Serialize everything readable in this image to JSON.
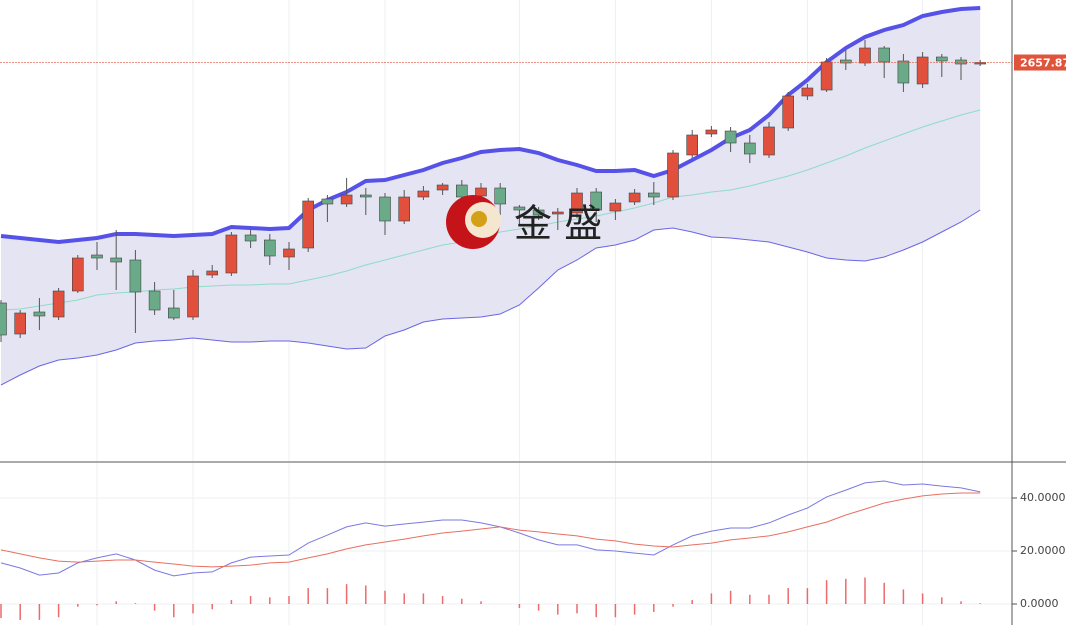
{
  "chart_data": [
    {
      "type": "candlestick",
      "watermark": "金 盛",
      "categories": [
        null,
        null,
        null,
        null,
        null,
        null,
        null,
        null,
        null,
        null,
        null,
        null,
        null,
        null,
        null,
        null,
        null,
        null,
        null,
        null,
        null,
        null,
        null,
        null,
        null,
        null,
        null,
        null,
        null,
        null,
        null,
        null,
        null,
        null,
        null,
        null,
        null,
        null,
        null,
        null,
        null,
        null,
        null,
        null,
        null,
        null,
        null,
        null,
        null,
        null,
        null,
        null
      ],
      "open": [
        2597.75,
        2590.0,
        2595.5,
        2594.25,
        2600.75,
        2609.75,
        2609.0,
        2608.5,
        2600.75,
        2596.5,
        2594.25,
        2604.75,
        2605.25,
        2614.75,
        2613.5,
        2609.25,
        2611.5,
        2623.75,
        2622.5,
        2624.75,
        2624.25,
        2618.25,
        2624.25,
        2626.0,
        2627.25,
        2624.5,
        2626.5,
        2621.75,
        2621.0,
        2620.0,
        2620.25,
        2625.5,
        2620.75,
        2623.0,
        2625.25,
        2624.25,
        2634.75,
        2640.0,
        2640.75,
        2637.75,
        2634.75,
        2641.5,
        2649.5,
        2651.0,
        2658.5,
        2657.75,
        2661.5,
        2658.25,
        2652.5,
        2659.25,
        2658.5,
        2657.75
      ],
      "high": [
        2598.5,
        2596.0,
        2599.0,
        2601.5,
        2609.75,
        2613.0,
        2616.0,
        2611.0,
        2603.0,
        2601.0,
        2606.0,
        2607.25,
        2615.5,
        2616.0,
        2615.0,
        2613.0,
        2624.0,
        2624.75,
        2629.0,
        2626.5,
        2625.25,
        2626.0,
        2627.0,
        2627.75,
        2628.5,
        2627.75,
        2627.75,
        2622.25,
        2621.75,
        2621.5,
        2626.5,
        2626.5,
        2623.75,
        2626.25,
        2628.0,
        2636.0,
        2641.0,
        2642.0,
        2641.75,
        2639.75,
        2643.0,
        2650.5,
        2652.5,
        2659.0,
        2661.0,
        2663.5,
        2662.0,
        2660.0,
        2660.5,
        2660.0,
        2659.25,
        2658.5
      ],
      "low": [
        2588.0,
        2589.0,
        2591.0,
        2593.5,
        2600.25,
        2606.0,
        2601.0,
        2590.25,
        2594.75,
        2593.5,
        2593.5,
        2604.0,
        2604.5,
        2611.5,
        2607.25,
        2606.0,
        2610.5,
        2618.0,
        2621.75,
        2619.75,
        2614.75,
        2617.5,
        2623.5,
        2624.75,
        2618.5,
        2621.0,
        2619.75,
        2617.25,
        2618.5,
        2616.0,
        2619.0,
        2618.0,
        2618.5,
        2622.25,
        2622.25,
        2623.5,
        2634.0,
        2639.25,
        2635.5,
        2632.75,
        2634.0,
        2640.75,
        2648.5,
        2650.5,
        2656.0,
        2657.0,
        2654.0,
        2650.5,
        2651.5,
        2654.25,
        2653.5,
        2657.0
      ],
      "close": [
        2589.75,
        2595.25,
        2594.5,
        2600.75,
        2609.0,
        2609.0,
        2608.0,
        2600.5,
        2596.0,
        2594.0,
        2604.5,
        2605.75,
        2614.75,
        2613.25,
        2609.5,
        2611.25,
        2623.25,
        2622.5,
        2624.75,
        2624.25,
        2618.25,
        2624.25,
        2625.75,
        2627.25,
        2624.25,
        2626.5,
        2622.5,
        2621.0,
        2619.75,
        2620.5,
        2625.25,
        2621.0,
        2622.75,
        2625.25,
        2624.25,
        2635.25,
        2639.75,
        2641.0,
        2637.75,
        2635.0,
        2641.75,
        2649.5,
        2651.5,
        2658.0,
        2657.75,
        2661.5,
        2658.0,
        2652.75,
        2659.25,
        2658.25,
        2657.5,
        2657.87
      ],
      "up_color": "#e0503c",
      "down_color": "#6aaa88",
      "band_fill": "#e4e4f2",
      "series": [
        {
          "color": "#5652e8",
          "values": [
            2614.5,
            2614.0,
            2613.5,
            2613.0,
            2613.5,
            2614.0,
            2615.0,
            2615.0,
            2614.75,
            2614.5,
            2614.75,
            2615.0,
            2616.75,
            2616.5,
            2616.25,
            2616.5,
            2621.0,
            2623.5,
            2625.5,
            2628.25,
            2628.5,
            2629.75,
            2631.0,
            2632.75,
            2634.0,
            2635.5,
            2636.0,
            2636.25,
            2635.25,
            2633.5,
            2632.25,
            2630.75,
            2630.75,
            2631.0,
            2629.5,
            2631.0,
            2633.5,
            2636.0,
            2639.0,
            2641.0,
            2644.75,
            2649.75,
            2653.5,
            2658.0,
            2661.5,
            2664.25,
            2666.0,
            2667.25,
            2669.5,
            2670.5,
            2671.25,
            2671.5
          ]
        },
        {
          "color": "#8fdcc8",
          "values": [
            2596.0,
            2596.25,
            2597.0,
            2597.75,
            2598.5,
            2599.75,
            2600.25,
            2600.5,
            2601.0,
            2601.25,
            2601.75,
            2602.0,
            2602.25,
            2602.25,
            2602.5,
            2602.5,
            2603.5,
            2604.5,
            2605.75,
            2607.25,
            2608.5,
            2609.75,
            2611.0,
            2612.25,
            2613.0,
            2614.0,
            2615.5,
            2616.25,
            2617.0,
            2618.0,
            2618.75,
            2619.5,
            2620.5,
            2621.5,
            2622.75,
            2624.25,
            2624.75,
            2625.5,
            2626.0,
            2627.0,
            2628.25,
            2629.5,
            2631.0,
            2632.75,
            2634.5,
            2636.5,
            2638.25,
            2640.0,
            2641.75,
            2643.25,
            2644.75,
            2646.0
          ]
        },
        {
          "color": "#6a66e6",
          "values": [
            2577.25,
            2579.75,
            2582.0,
            2583.5,
            2584.0,
            2584.75,
            2586.0,
            2587.75,
            2588.25,
            2588.5,
            2589.0,
            2588.5,
            2588.0,
            2588.0,
            2588.25,
            2588.25,
            2587.75,
            2587.0,
            2586.25,
            2586.5,
            2589.5,
            2591.0,
            2593.0,
            2593.75,
            2594.0,
            2594.25,
            2595.0,
            2597.25,
            2601.5,
            2606.0,
            2608.5,
            2611.5,
            2612.25,
            2613.5,
            2616.0,
            2616.5,
            2615.5,
            2614.25,
            2614.0,
            2613.5,
            2613.0,
            2611.75,
            2610.5,
            2609.0,
            2608.5,
            2608.25,
            2609.25,
            2611.0,
            2613.0,
            2615.5,
            2618.0,
            2621.0
          ]
        }
      ],
      "last_price": 2657.87,
      "last_price_color": "#e0543c",
      "ylim": [
        2558.0,
        2673.5
      ]
    },
    {
      "type": "combo",
      "series": [
        {
          "type": "bar",
          "color": "#ee6a6a",
          "values": [
            -5.3,
            -6,
            -6,
            -5,
            -1,
            -0.5,
            1,
            0.3,
            -2.5,
            -5,
            -3.5,
            -2,
            1.5,
            3,
            2.5,
            3,
            6,
            6,
            7.5,
            7,
            5,
            4,
            4,
            3,
            2,
            1,
            0,
            -1.5,
            -2.5,
            -4,
            -3.5,
            -5,
            -5,
            -4,
            -3,
            -1,
            1.5,
            4,
            5,
            3.5,
            3.5,
            6,
            6,
            9,
            9.5,
            10,
            8,
            5.5,
            4,
            2.5,
            1,
            0.3
          ]
        },
        {
          "type": "line",
          "color": "#7b79e0",
          "values": [
            15.5,
            13.6,
            10.9,
            11.7,
            15.5,
            17.4,
            18.9,
            16.6,
            12.8,
            10.6,
            11.7,
            12.1,
            15.5,
            17.7,
            18.1,
            18.5,
            23.0,
            26.0,
            29.1,
            30.6,
            29.4,
            30.2,
            30.9,
            31.7,
            31.7,
            30.6,
            29.1,
            26.8,
            24.2,
            22.3,
            22.3,
            20.4,
            20.0,
            19.2,
            18.5,
            22.3,
            25.7,
            27.5,
            28.7,
            28.7,
            30.6,
            33.6,
            36.2,
            40.4,
            43.0,
            45.7,
            46.4,
            44.9,
            45.3,
            44.5,
            43.8,
            42.3
          ]
        },
        {
          "type": "line",
          "color": "#e87060",
          "values": [
            20.4,
            18.9,
            17.4,
            16.2,
            15.8,
            16.2,
            16.6,
            16.6,
            15.8,
            15.1,
            14.3,
            14.0,
            14.3,
            14.7,
            15.5,
            15.8,
            17.4,
            18.9,
            20.8,
            22.3,
            23.4,
            24.5,
            25.7,
            26.8,
            27.5,
            28.3,
            29.1,
            27.9,
            27.2,
            26.4,
            25.7,
            24.5,
            23.8,
            22.6,
            21.9,
            21.5,
            22.3,
            23.0,
            24.2,
            24.9,
            25.7,
            27.2,
            29.1,
            30.9,
            33.6,
            35.8,
            38.1,
            39.6,
            40.8,
            41.5,
            41.9,
            41.9
          ]
        }
      ],
      "ylim": [
        -7.92,
        53.21
      ],
      "yticks": [
        {
          "value": 0,
          "label": "0.0000"
        },
        {
          "value": 20,
          "label": "20.0000"
        },
        {
          "value": 40,
          "label": "40.0000"
        }
      ],
      "grid": true
    }
  ]
}
